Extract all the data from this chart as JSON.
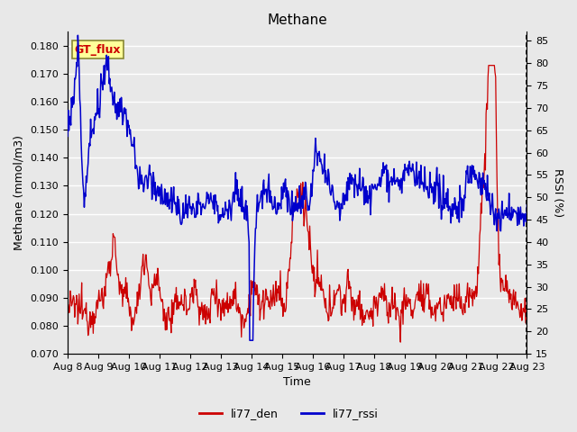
{
  "title": "Methane",
  "xlabel": "Time",
  "ylabel_left": "Methane (mmol/m3)",
  "ylabel_right": "RSSI (%)",
  "ylim_left": [
    0.07,
    0.185
  ],
  "ylim_right": [
    15,
    87
  ],
  "yticks_left": [
    0.07,
    0.08,
    0.09,
    0.1,
    0.11,
    0.12,
    0.13,
    0.14,
    0.15,
    0.16,
    0.17,
    0.18
  ],
  "yticks_right": [
    15,
    20,
    25,
    30,
    35,
    40,
    45,
    50,
    55,
    60,
    65,
    70,
    75,
    80,
    85
  ],
  "xtick_labels": [
    "Aug 8",
    "Aug 9",
    "Aug 10",
    "Aug 11",
    "Aug 12",
    "Aug 13",
    "Aug 14",
    "Aug 15",
    "Aug 16",
    "Aug 17",
    "Aug 18",
    "Aug 19",
    "Aug 20",
    "Aug 21",
    "Aug 22",
    "Aug 23"
  ],
  "color_den": "#CC0000",
  "color_rssi": "#0000CC",
  "fig_bg_color": "#E8E8E8",
  "plot_bg_color": "#E8E8E8",
  "grid_color": "#FFFFFF",
  "legend_box_facecolor": "#FFFF99",
  "legend_box_edgecolor": "#888833",
  "title_fontsize": 11,
  "axis_label_fontsize": 9,
  "tick_label_fontsize": 8,
  "linewidth_den": 0.9,
  "linewidth_rssi": 1.1
}
